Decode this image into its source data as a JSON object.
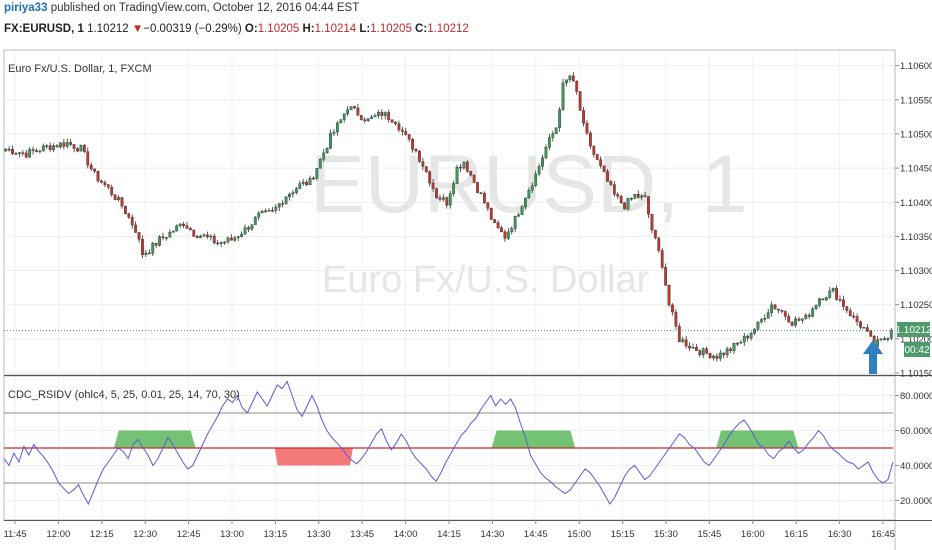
{
  "header": {
    "user": "piriya33",
    "published": "published on TradingView.com, October 12, 2016 04:44 EST",
    "symbol": "FX:EURUSD, 1",
    "last": "1.10212",
    "arrow": "▼",
    "change": "−0.00319 (−0.29%)",
    "open_label": "O:",
    "open": "1.10205",
    "high_label": "H:",
    "high": "1.10214",
    "low_label": "L:",
    "low": "1.10205",
    "close_label": "C:",
    "close": "1.10212"
  },
  "main_pane": {
    "label": "Euro Fx/U.S. Dollar, 1, FXCM",
    "watermark_symbol": "EURUSD, 1",
    "watermark_name": "Euro Fx/U.S. Dollar",
    "price_badge": "1.10212",
    "countdown_badge": "00:42"
  },
  "indicator_pane": {
    "label": "CDC_RSIDV (ohlc4, 5, 25, 0.01, 25, 14, 70, 30)"
  },
  "colors": {
    "bull": "#3d9a5a",
    "bear": "#c0392b",
    "wick": "#333333",
    "rsi": "#5b5bd6",
    "mid": "#c62828",
    "band": "#666666",
    "green_fill": "#5cb85c",
    "red_fill": "#f36b6b",
    "badge": "#4e9a6a",
    "arrow": "#2f7fc1"
  },
  "chart_data": [
    {
      "type": "candlestick",
      "title": "FX:EURUSD, 1",
      "y_ticks": [
        "1.10600",
        "1.10550",
        "1.10500",
        "1.10450",
        "1.10400",
        "1.10350",
        "1.10300",
        "1.10250",
        "1.10200",
        "1.10150"
      ],
      "ylim": [
        1.1015,
        1.1062
      ],
      "x_ticks": [
        "11:45",
        "12:00",
        "12:15",
        "12:30",
        "12:45",
        "13:00",
        "13:15",
        "13:30",
        "13:45",
        "14:00",
        "14:15",
        "14:30",
        "14:45",
        "15:00",
        "15:15",
        "15:30",
        "15:45",
        "16:00",
        "16:15",
        "16:30",
        "16:45"
      ],
      "close_path": [
        [
          0,
          1.10478
        ],
        [
          6,
          1.10471
        ],
        [
          12,
          1.10481
        ],
        [
          18,
          1.10487
        ],
        [
          22,
          1.10478
        ],
        [
          26,
          1.1044
        ],
        [
          30,
          1.1042
        ],
        [
          34,
          1.10395
        ],
        [
          38,
          1.1036
        ],
        [
          40,
          1.10325
        ],
        [
          42,
          1.1033
        ],
        [
          45,
          1.10345
        ],
        [
          48,
          1.10355
        ],
        [
          52,
          1.1037
        ],
        [
          55,
          1.10355
        ],
        [
          58,
          1.1035
        ],
        [
          62,
          1.1034
        ],
        [
          66,
          1.10345
        ],
        [
          70,
          1.1036
        ],
        [
          74,
          1.1038
        ],
        [
          78,
          1.10385
        ],
        [
          82,
          1.1041
        ],
        [
          86,
          1.10425
        ],
        [
          89,
          1.1043
        ],
        [
          92,
          1.10462
        ],
        [
          95,
          1.10495
        ],
        [
          98,
          1.1052
        ],
        [
          100,
          1.1054
        ],
        [
          103,
          1.1053
        ],
        [
          106,
          1.1052
        ],
        [
          110,
          1.1053
        ],
        [
          114,
          1.1052
        ],
        [
          117,
          1.10495
        ],
        [
          120,
          1.10475
        ],
        [
          123,
          1.10445
        ],
        [
          126,
          1.1041
        ],
        [
          129,
          1.104
        ],
        [
          132,
          1.1045
        ],
        [
          134,
          1.1046
        ],
        [
          137,
          1.1043
        ],
        [
          140,
          1.104
        ],
        [
          143,
          1.10365
        ],
        [
          146,
          1.1035
        ],
        [
          149,
          1.10375
        ],
        [
          152,
          1.1041
        ],
        [
          155,
          1.1044
        ],
        [
          158,
          1.1048
        ],
        [
          161,
          1.1051
        ],
        [
          163,
          1.1057
        ],
        [
          165,
          1.10585
        ],
        [
          167,
          1.1056
        ],
        [
          169,
          1.1051
        ],
        [
          172,
          1.1047
        ],
        [
          175,
          1.1044
        ],
        [
          178,
          1.1041
        ],
        [
          181,
          1.10395
        ],
        [
          184,
          1.1041
        ],
        [
          187,
          1.10405
        ],
        [
          189,
          1.1036
        ],
        [
          192,
          1.1031
        ],
        [
          194,
          1.1025
        ],
        [
          197,
          1.102
        ],
        [
          200,
          1.1019
        ],
        [
          204,
          1.1018
        ],
        [
          208,
          1.10175
        ],
        [
          212,
          1.10185
        ],
        [
          216,
          1.102
        ],
        [
          220,
          1.1022
        ],
        [
          224,
          1.1025
        ],
        [
          227,
          1.1024
        ],
        [
          230,
          1.10225
        ],
        [
          234,
          1.1023
        ],
        [
          238,
          1.1026
        ],
        [
          242,
          1.1027
        ],
        [
          245,
          1.1025
        ],
        [
          248,
          1.1023
        ],
        [
          251,
          1.10215
        ],
        [
          254,
          1.1019
        ],
        [
          257,
          1.102
        ],
        [
          259,
          1.10212
        ]
      ]
    },
    {
      "type": "line",
      "title": "CDC_RSIDV (ohlc4, 5, 25, 0.01, 25, 14, 70, 30)",
      "y_ticks": [
        "80.0000",
        "60.0000",
        "40.0000",
        "20.0000"
      ],
      "ylim": [
        10,
        90
      ],
      "levels": {
        "upper": 70,
        "middle": 50,
        "lower": 30
      },
      "series": [
        {
          "values": [
            44,
            40,
            47,
            42,
            51,
            46,
            52,
            48,
            45,
            41,
            36,
            30,
            27,
            24,
            26,
            29,
            23,
            18,
            25,
            32,
            38,
            42,
            46,
            50,
            48,
            44,
            52,
            55,
            50,
            46,
            40,
            44,
            50,
            56,
            52,
            47,
            42,
            38,
            40,
            46,
            52,
            58,
            63,
            68,
            74,
            78,
            76,
            80,
            73,
            70,
            76,
            82,
            78,
            74,
            80,
            86,
            84,
            88,
            80,
            72,
            68,
            74,
            80,
            74,
            66,
            60,
            56,
            53,
            50,
            46,
            43,
            41,
            44,
            48,
            53,
            58,
            61,
            54,
            49,
            53,
            58,
            54,
            48,
            44,
            41,
            38,
            34,
            31,
            36,
            42,
            47,
            52,
            57,
            60,
            64,
            67,
            72,
            76,
            80,
            74,
            78,
            75,
            78,
            73,
            64,
            56,
            46,
            41,
            36,
            33,
            31,
            28,
            26,
            24,
            26,
            30,
            34,
            38,
            36,
            32,
            28,
            23,
            18,
            22,
            28,
            34,
            38,
            40,
            36,
            32,
            34,
            38,
            42,
            46,
            50,
            54,
            58,
            56,
            52,
            50,
            46,
            42,
            40,
            44,
            48,
            52,
            57,
            61,
            64,
            66,
            62,
            57,
            52,
            50,
            46,
            44,
            48,
            50,
            54,
            50,
            47,
            49,
            53,
            56,
            60,
            57,
            52,
            49,
            47,
            44,
            42,
            41,
            38,
            40,
            42,
            36,
            32,
            30,
            32,
            42
          ]
        }
      ],
      "green_zones": [
        [
          0.1235,
          0.2155
        ],
        [
          0.5485,
          0.6425
        ],
        [
          0.801,
          0.8935
        ]
      ],
      "red_zones": [
        [
          0.3045,
          0.3925
        ]
      ]
    }
  ]
}
